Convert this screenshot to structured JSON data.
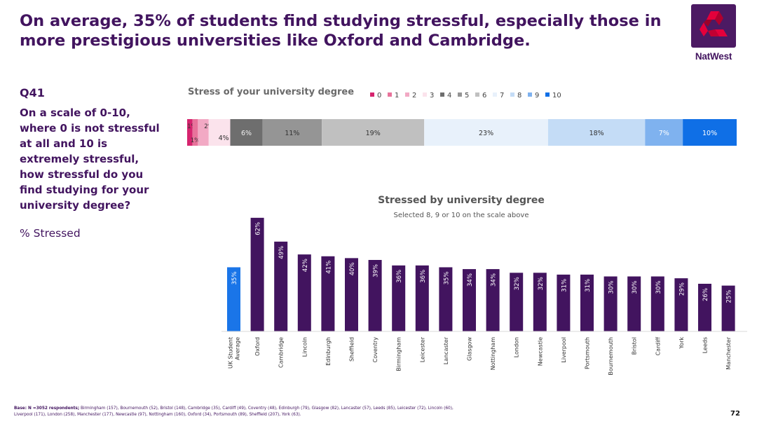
{
  "headline": "On average, 35% of students find studying stressful, especially those in\nmore prestigious universities like Oxford and Cambridge.",
  "logo": {
    "text": "NatWest"
  },
  "question": {
    "id": "Q41",
    "text": "On a scale of 0-10,\nwhere 0 is not stressful\nat all and 10 is\nextremely stressful,\nhow stressful do you\nfind studying for your\nuniversity degree?",
    "stressed_label": "% Stressed"
  },
  "footer": {
    "base_bold": "Base: N =3052 respondents;",
    "base_line1": " Birmingham (157),  Bournemouth (52), Bristol (148), Cambridge (35), Cardiff (49), Coventry (48),  Edinburgh (79), Glasgow (82), Lancaster (57), Leeds (85), Leicester (72), Lincoln (60),",
    "base_line2": "Liverpool (171), London (258), Manchester (177), Newcastle (97), Nottingham (160), Oxford (34), Portsmouth (89), Sheffield (207), York (63).",
    "page_number": "72"
  },
  "chart_data": [
    {
      "type": "bar",
      "orientation": "horizontal-stacked",
      "title": "Stress of your university degree",
      "legend_position": "top",
      "series": [
        {
          "name": "0",
          "value": 1,
          "label": "1%",
          "color": "#d6246e"
        },
        {
          "name": "1",
          "value": 1,
          "label": "1%",
          "color": "#e8739b"
        },
        {
          "name": "2",
          "value": 2,
          "label": "2%",
          "color": "#f2a9c4"
        },
        {
          "name": "3",
          "value": 4,
          "label": "4%",
          "color": "#fbe3ec"
        },
        {
          "name": "4",
          "value": 6,
          "label": "6%",
          "color": "#6e6e6e"
        },
        {
          "name": "5",
          "value": 11,
          "label": "11%",
          "color": "#959595"
        },
        {
          "name": "6",
          "value": 19,
          "label": "19%",
          "color": "#c0c0c0"
        },
        {
          "name": "7",
          "value": 23,
          "label": "23%",
          "color": "#e8f1fb"
        },
        {
          "name": "8",
          "value": 18,
          "label": "18%",
          "color": "#c4dcf6"
        },
        {
          "name": "9",
          "value": 7,
          "label": "7%",
          "color": "#7fb2ef"
        },
        {
          "name": "10",
          "value": 10,
          "label": "10%",
          "color": "#0f6fe6"
        }
      ]
    },
    {
      "type": "bar",
      "title": "Stressed by university degree",
      "subtitle": "Selected 8, 9 or 10 on the scale above",
      "ylim": [
        0,
        65
      ],
      "grid": false,
      "categories": [
        "UK Student Average",
        "Oxford",
        "Cambridge",
        "Lincoln",
        "Edinburgh",
        "Sheffield",
        "Coventry",
        "Birmingham",
        "Leicester",
        "Lancaster",
        "Glasgow",
        "Nottingham",
        "London",
        "Newcastle",
        "Liverpool",
        "Portsmouth",
        "Bournemouth",
        "Bristol",
        "Cardiff",
        "York",
        "Leeds",
        "Manchester"
      ],
      "values": [
        35,
        62,
        49,
        42,
        41,
        40,
        39,
        36,
        36,
        35,
        34,
        34,
        32,
        32,
        31,
        31,
        30,
        30,
        30,
        29,
        26,
        25
      ],
      "labels": [
        "35%",
        "62%",
        "49%",
        "42%",
        "41%",
        "40%",
        "39%",
        "36%",
        "36%",
        "35%",
        "34%",
        "34%",
        "32%",
        "32%",
        "31%",
        "31%",
        "30%",
        "30%",
        "30%",
        "29%",
        "26%",
        "25%"
      ],
      "colors": {
        "average": "#1a75e8",
        "university": "#42145f"
      }
    }
  ]
}
